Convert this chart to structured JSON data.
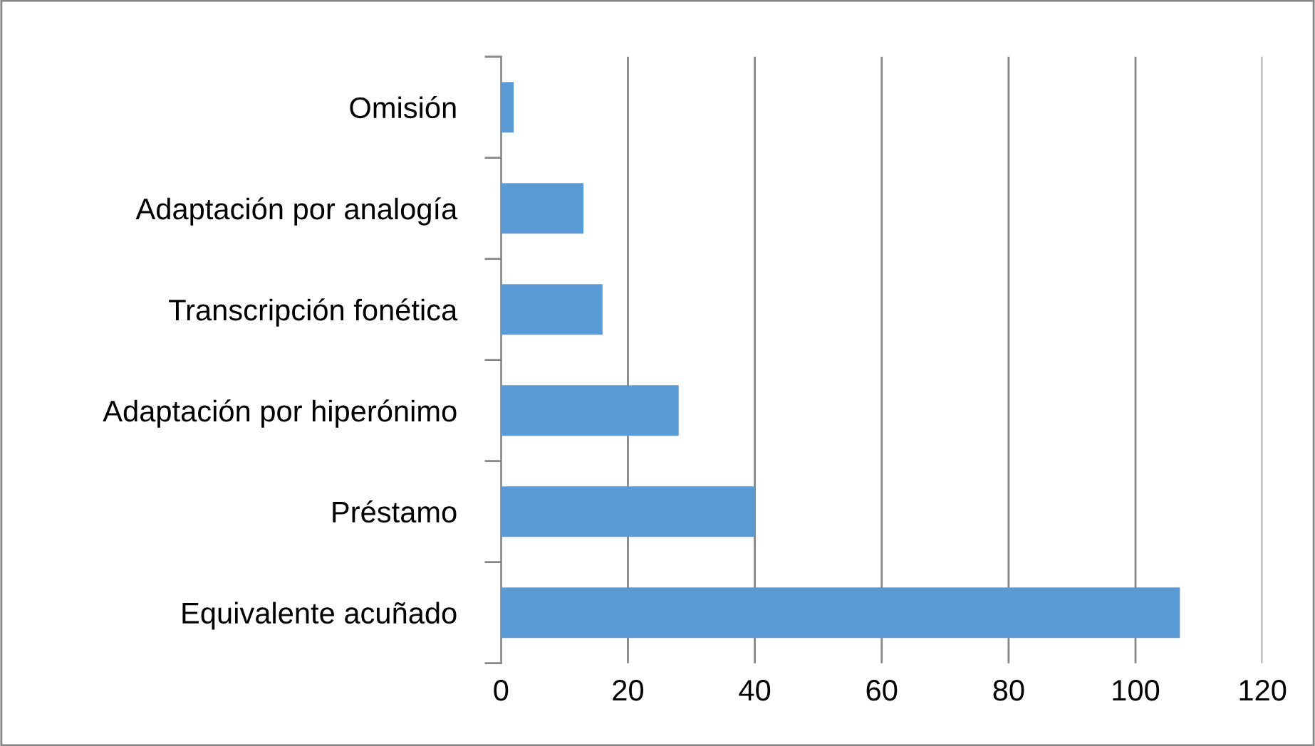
{
  "chart_data": {
    "type": "bar",
    "orientation": "horizontal",
    "categories": [
      "Omisión",
      "Adaptación por analogía",
      "Transcripción fonética",
      "Adaptación por hiperónimo",
      "Préstamo",
      "Equivalente acuñado"
    ],
    "values": [
      2,
      13,
      16,
      28,
      40,
      107
    ],
    "color": "#5b9bd5",
    "xlim": [
      0,
      120
    ],
    "xticks": [
      0,
      20,
      40,
      60,
      80,
      100,
      120
    ],
    "grid": "x",
    "legend": false
  }
}
